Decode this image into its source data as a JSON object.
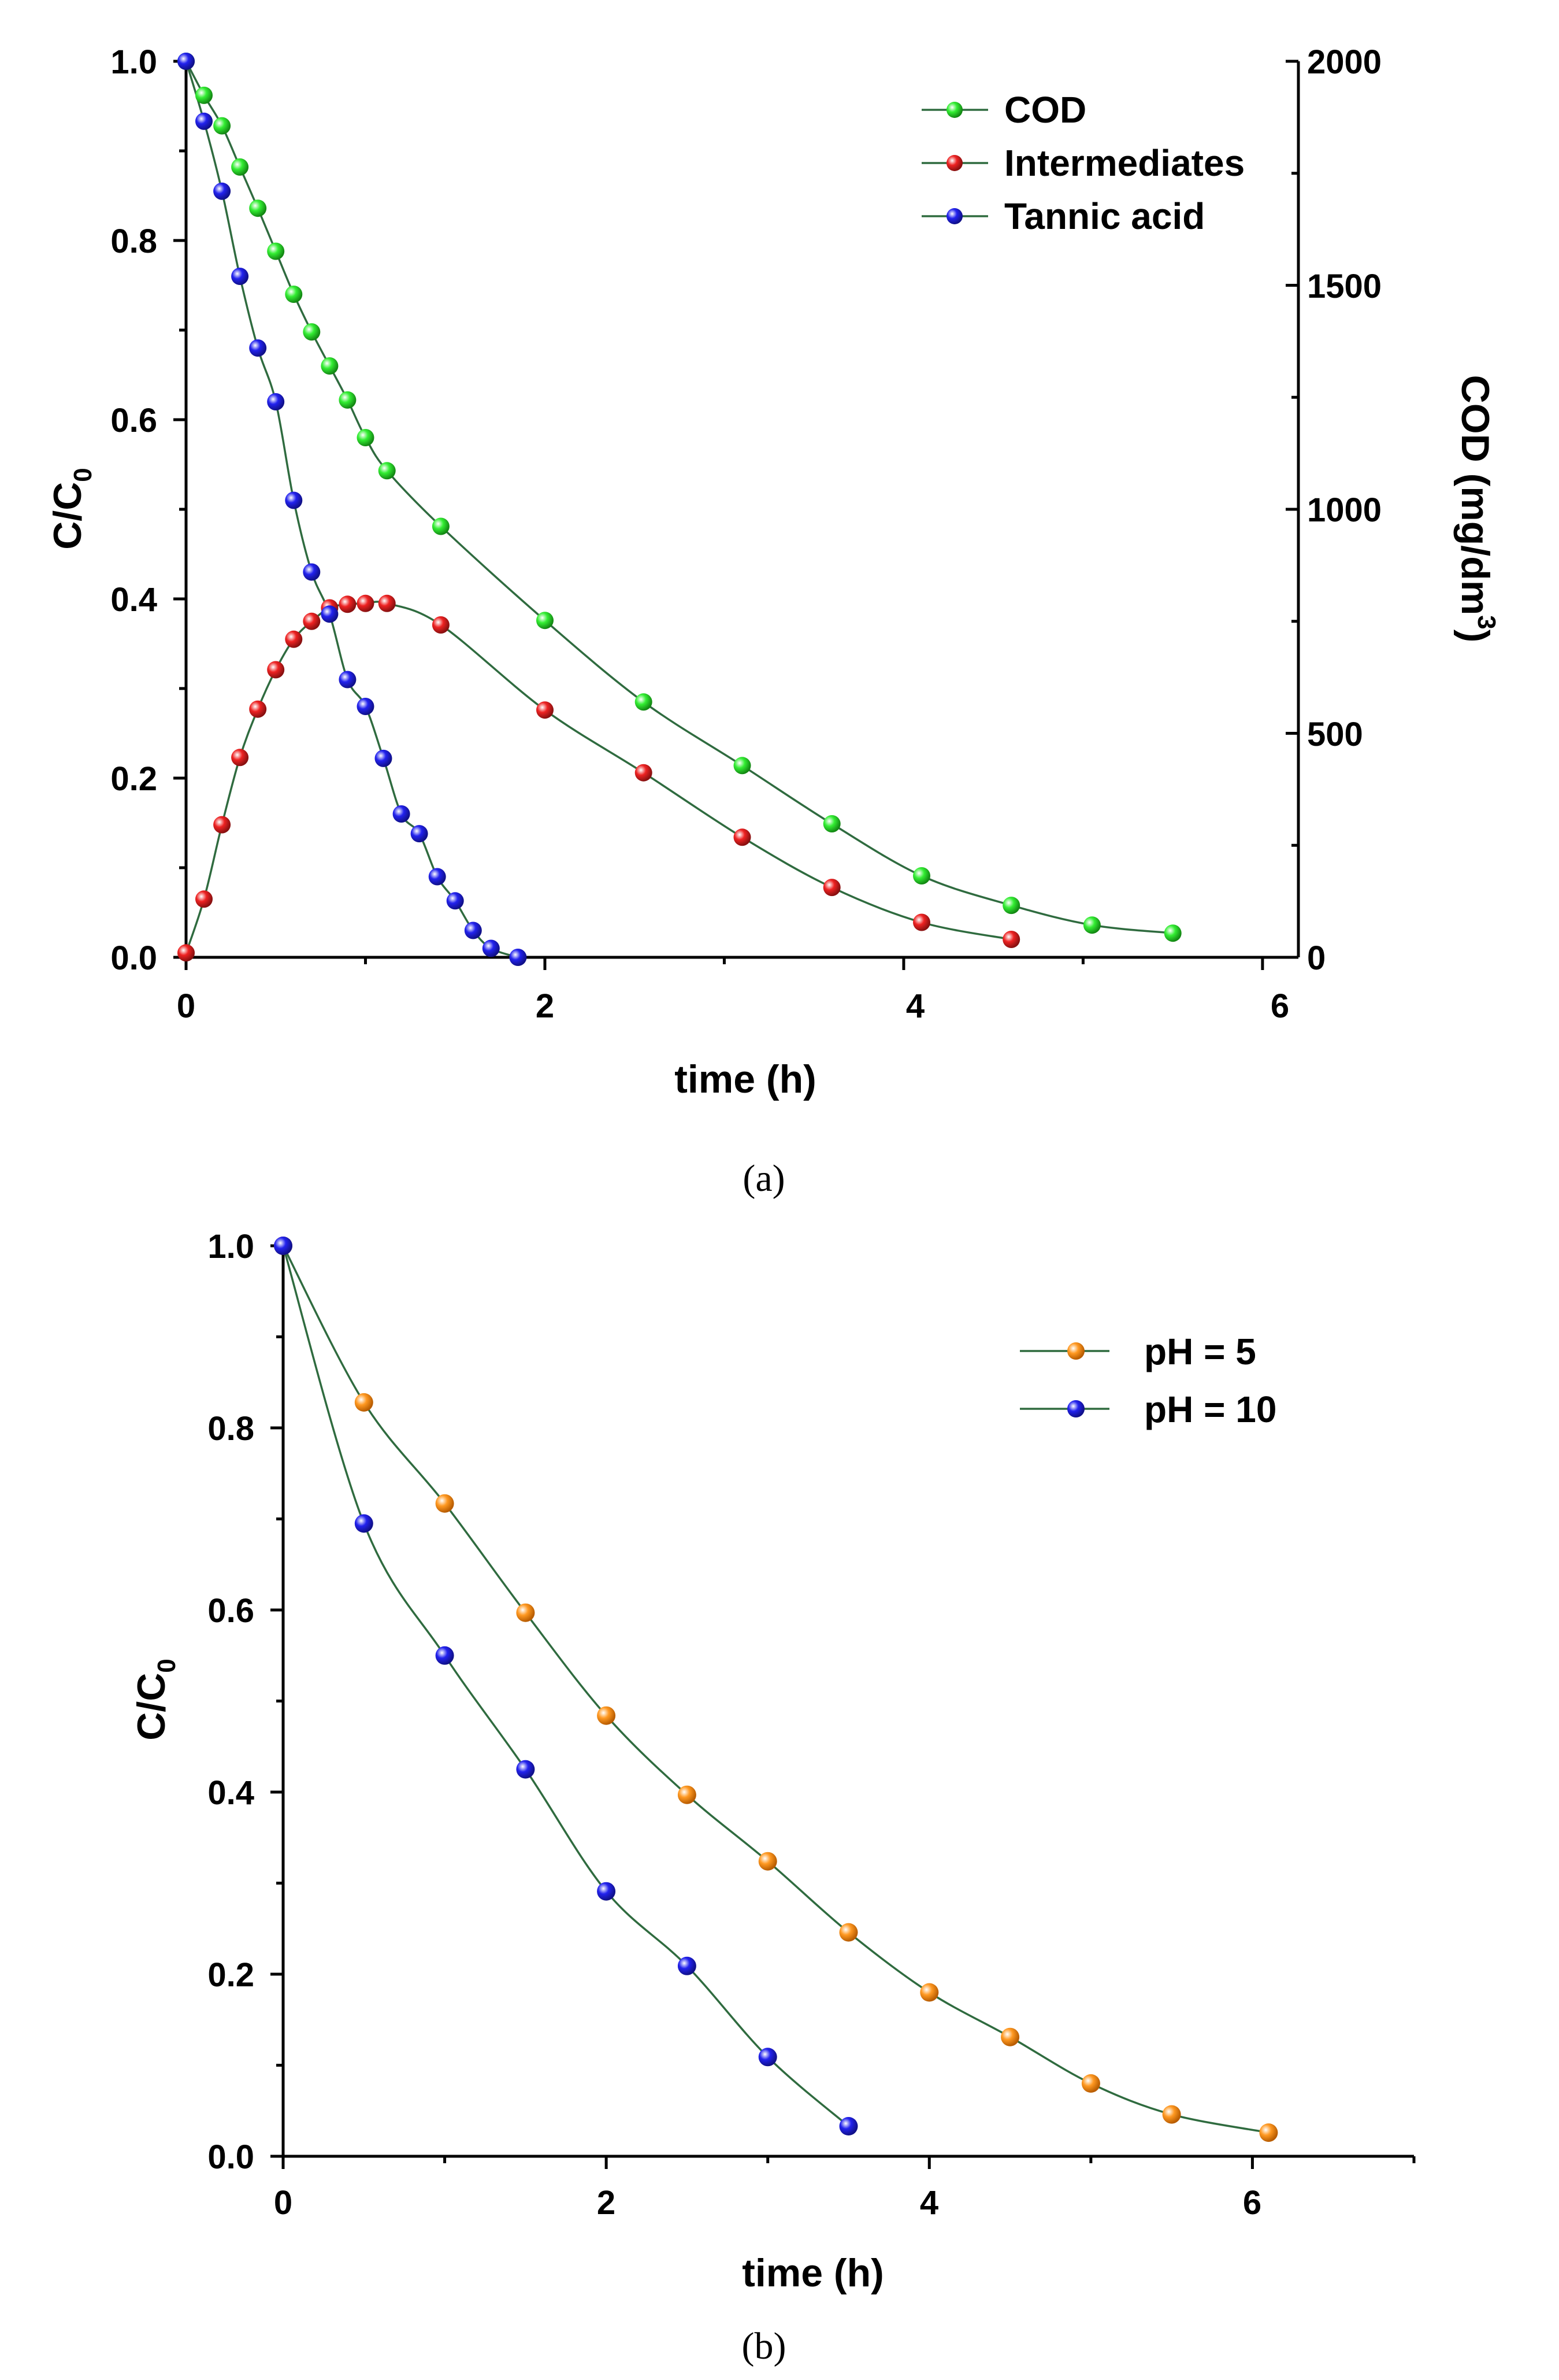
{
  "colors": {
    "COD": "#33ee33",
    "Intermediates": "#ee2222",
    "Tannic acid": "#2222ee",
    "pH = 5": "#ff9922",
    "pH = 10": "#2222ee",
    "line": "#2f6b3f"
  },
  "chart_data": [
    {
      "type": "line",
      "panel_label": "(a)",
      "xlabel": "time (h)",
      "ylabel": "C/C",
      "ylabel_sub": "0",
      "y2label": "COD (mg/dm",
      "y2label_sup": "3",
      "y2label_tail": ")",
      "xlim": [
        0,
        6.2
      ],
      "ylim": [
        0,
        1.0
      ],
      "y2lim": [
        0,
        2000
      ],
      "xticks": [
        0,
        2,
        4,
        6
      ],
      "xtick_labels": [
        "0",
        "2",
        "4",
        "6"
      ],
      "yticks": [
        0.0,
        0.2,
        0.4,
        0.6,
        0.8,
        1.0
      ],
      "ytick_labels": [
        "0.0",
        "0.2",
        "0.4",
        "0.6",
        "0.8",
        "1.0"
      ],
      "y2ticks": [
        0,
        500,
        1000,
        1500,
        2000
      ],
      "y2tick_labels": [
        "0",
        "500",
        "1000",
        "1500",
        "2000"
      ],
      "legend_position": "top-right",
      "series": [
        {
          "name": "COD",
          "x": [
            0,
            0.1,
            0.2,
            0.3,
            0.4,
            0.5,
            0.6,
            0.7,
            0.8,
            0.9,
            1.0,
            1.12,
            1.42,
            2.0,
            2.55,
            3.1,
            3.6,
            4.1,
            4.6,
            5.05,
            5.5
          ],
          "y": [
            1.0,
            0.962,
            0.928,
            0.882,
            0.836,
            0.788,
            0.74,
            0.698,
            0.66,
            0.622,
            0.58,
            0.543,
            0.481,
            0.376,
            0.285,
            0.214,
            0.149,
            0.091,
            0.058,
            0.036,
            0.027
          ]
        },
        {
          "name": "Intermediates",
          "x": [
            0,
            0.1,
            0.2,
            0.3,
            0.4,
            0.5,
            0.6,
            0.7,
            0.8,
            0.9,
            1.0,
            1.12,
            1.42,
            2.0,
            2.55,
            3.1,
            3.6,
            4.1,
            4.6
          ],
          "y": [
            0.005,
            0.065,
            0.148,
            0.223,
            0.277,
            0.321,
            0.355,
            0.375,
            0.39,
            0.394,
            0.395,
            0.395,
            0.371,
            0.276,
            0.206,
            0.134,
            0.078,
            0.039,
            0.02
          ]
        },
        {
          "name": "Tannic acid",
          "x": [
            0,
            0.1,
            0.2,
            0.3,
            0.4,
            0.5,
            0.6,
            0.7,
            0.8,
            0.9,
            1.0,
            1.1,
            1.2,
            1.3,
            1.4,
            1.5,
            1.6,
            1.7,
            1.85
          ],
          "y": [
            1.0,
            0.933,
            0.855,
            0.76,
            0.68,
            0.62,
            0.51,
            0.43,
            0.383,
            0.31,
            0.28,
            0.222,
            0.16,
            0.138,
            0.09,
            0.063,
            0.03,
            0.01,
            0.0
          ]
        }
      ]
    },
    {
      "type": "line",
      "panel_label": "(b)",
      "xlabel": "time (h)",
      "ylabel": "C/C",
      "ylabel_sub": "0",
      "xlim": [
        0,
        7
      ],
      "ylim": [
        0,
        1.0
      ],
      "xticks": [
        0,
        2,
        4,
        6
      ],
      "xtick_labels": [
        "0",
        "2",
        "4",
        "6"
      ],
      "yticks": [
        0.0,
        0.2,
        0.4,
        0.6,
        0.8,
        1.0
      ],
      "ytick_labels": [
        "0.0",
        "0.2",
        "0.4",
        "0.6",
        "0.8",
        "1.0"
      ],
      "legend_position": "top-right",
      "series": [
        {
          "name": "pH = 5",
          "x": [
            0,
            0.5,
            1.0,
            1.5,
            2.0,
            2.5,
            3.0,
            3.5,
            4.0,
            4.5,
            5.0,
            5.5,
            6.1
          ],
          "y": [
            1.0,
            0.828,
            0.717,
            0.597,
            0.484,
            0.397,
            0.324,
            0.246,
            0.18,
            0.131,
            0.08,
            0.046,
            0.026
          ]
        },
        {
          "name": "pH = 10",
          "x": [
            0,
            0.5,
            1.0,
            1.5,
            2.0,
            2.5,
            3.0,
            3.5
          ],
          "y": [
            1.0,
            0.695,
            0.55,
            0.425,
            0.291,
            0.209,
            0.109,
            0.033
          ]
        }
      ]
    }
  ]
}
